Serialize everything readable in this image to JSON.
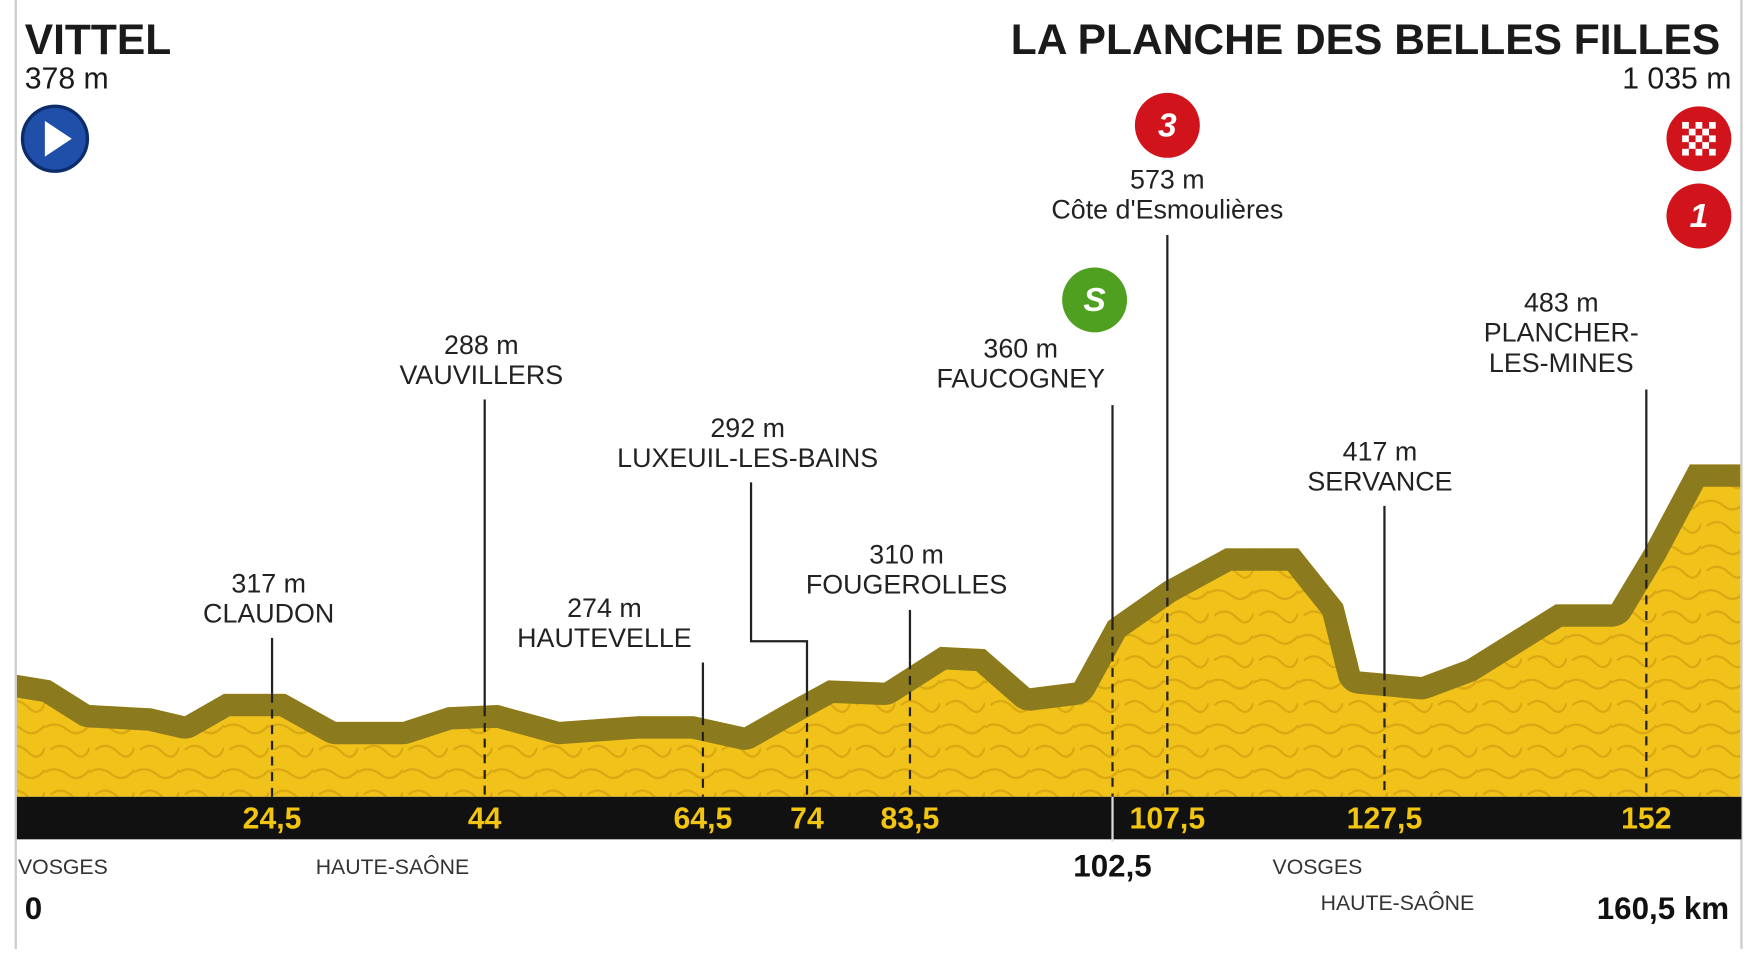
{
  "start": {
    "name": "VITTEL",
    "altitude": "378 m",
    "km": "0"
  },
  "finish": {
    "name": "LA PLANCHE DES BELLES FILLES",
    "altitude": "1 035 m",
    "km": "160,5 km",
    "badge": "1"
  },
  "places": [
    {
      "altitude": "317 m",
      "name": [
        "CLAUDON"
      ],
      "km": "24,5"
    },
    {
      "altitude": "288 m",
      "name": [
        "VAUVILLERS"
      ],
      "km": "44"
    },
    {
      "altitude": "274 m",
      "name": [
        "HAUTEVELLE"
      ],
      "km": "64,5"
    },
    {
      "altitude": "292 m",
      "name": [
        "LUXEUIL-LES-BAINS"
      ],
      "km": "74"
    },
    {
      "altitude": "310 m",
      "name": [
        "FOUGEROLLES"
      ],
      "km": "83,5"
    },
    {
      "altitude": "360 m",
      "name": [
        "FAUCOGNEY"
      ],
      "km": "102,5",
      "badge": "S"
    },
    {
      "altitude": "573 m",
      "name": [
        "Côte d'Esmoulières"
      ],
      "km": "107,5",
      "badge": "3"
    },
    {
      "altitude": "417 m",
      "name": [
        "SERVANCE"
      ],
      "km": "127,5"
    },
    {
      "altitude": "483 m",
      "name": [
        "PLANCHER-",
        "LES-MINES"
      ],
      "km": "152"
    }
  ],
  "departments": [
    "VOSGES",
    "HAUTE-SAÔNE",
    "VOSGES",
    "HAUTE-SAÔNE"
  ]
}
